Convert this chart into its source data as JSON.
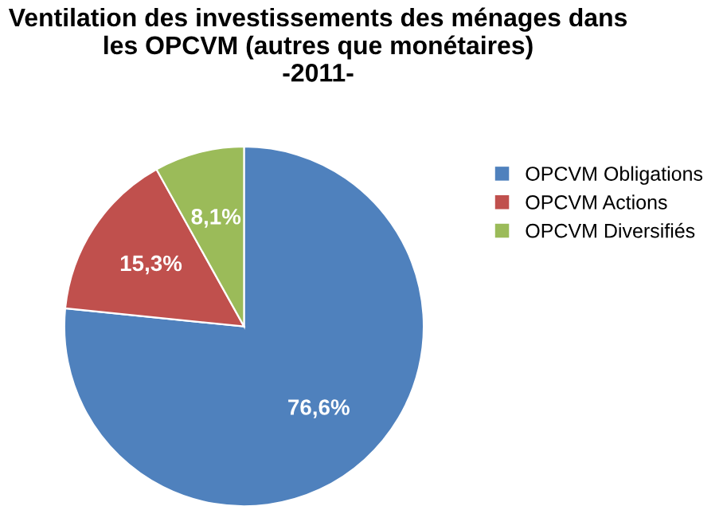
{
  "chart_data": {
    "type": "pie",
    "title": "Ventilation des investissements des ménages dans les OPCVM (autres que monétaires)\n-2011-",
    "categories": [
      "OPCVM Obligations",
      "OPCVM Actions",
      "OPCVM Diversifiés"
    ],
    "values": [
      76.6,
      15.3,
      8.1
    ],
    "colors": [
      "#4f81bd",
      "#c0504d",
      "#9bbb59"
    ],
    "value_labels": [
      "76,6%",
      "15,3%",
      "8,1%"
    ],
    "legend": "right"
  }
}
